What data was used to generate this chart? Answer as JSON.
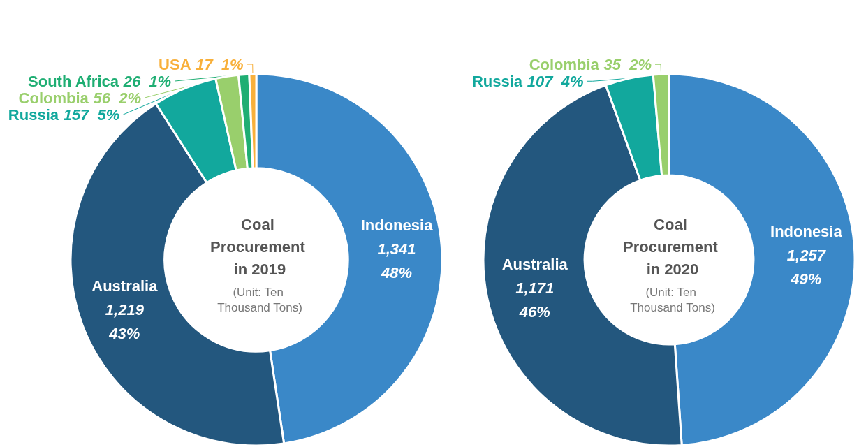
{
  "chart_data": [
    {
      "type": "donut",
      "title": "Coal Procurement in 2019",
      "subtitle": "(Unit: Ten Thousand Tons)",
      "categories": [
        "Indonesia",
        "Australia",
        "Russia",
        "Colombia",
        "South Africa",
        "USA"
      ],
      "values": [
        1341,
        1219,
        157,
        56,
        26,
        17
      ],
      "value_labels": [
        "1,341 48%",
        "1,219 43%",
        "157 5%",
        "56 2%",
        "26 1%",
        "17 1%"
      ],
      "colors": [
        "#3a88c8",
        "#23577e",
        "#12a89d",
        "#99cf6c",
        "#1fae73",
        "#f8b03b"
      ],
      "legend": false
    },
    {
      "type": "donut",
      "title": "Coal Procurement in 2020",
      "subtitle": "(Unit: Ten Thousand Tons)",
      "categories": [
        "Indonesia",
        "Australia",
        "Russia",
        "Colombia"
      ],
      "values": [
        1257,
        1171,
        107,
        35
      ],
      "value_labels": [
        "1,257 49%",
        "1,171 46%",
        "107 4%",
        "35 2%"
      ],
      "colors": [
        "#3a88c8",
        "#23577e",
        "#12a89d",
        "#99cf6c"
      ],
      "legend": false
    }
  ]
}
